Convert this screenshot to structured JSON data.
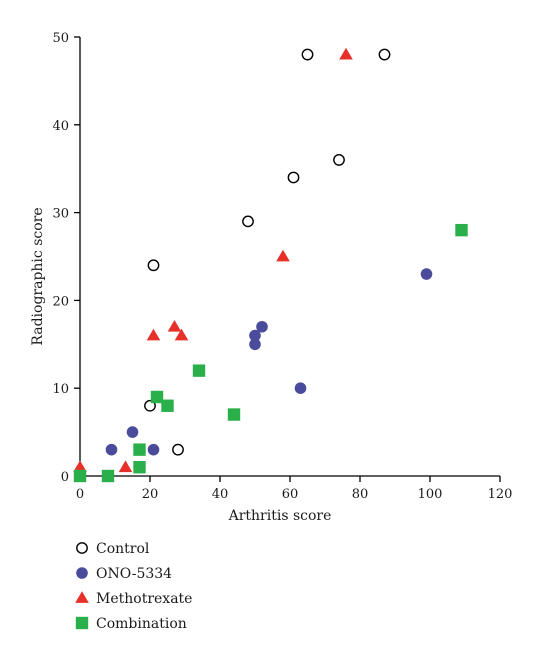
{
  "chart_data": {
    "type": "scatter",
    "xlabel": "Arthritis score",
    "ylabel": "Radiographic score",
    "xlim": [
      0,
      120
    ],
    "ylim": [
      0,
      50
    ],
    "xticks": [
      "0",
      "20",
      "40",
      "60",
      "80",
      "100",
      "120"
    ],
    "yticks": [
      "0",
      "10",
      "20",
      "30",
      "40",
      "50"
    ],
    "grid": false,
    "legend_position": "bottom-left",
    "series": [
      {
        "name": "Control",
        "marker": "circle-open",
        "color": "#000000",
        "points": [
          {
            "x": 65,
            "y": 48
          },
          {
            "x": 87,
            "y": 48
          },
          {
            "x": 74,
            "y": 36
          },
          {
            "x": 61,
            "y": 34
          },
          {
            "x": 48,
            "y": 29
          },
          {
            "x": 21,
            "y": 24
          },
          {
            "x": 20,
            "y": 8
          },
          {
            "x": 28,
            "y": 3
          }
        ]
      },
      {
        "name": "ONO-5334",
        "marker": "circle-filled",
        "color": "#4b4b9c",
        "points": [
          {
            "x": 99,
            "y": 23
          },
          {
            "x": 52,
            "y": 17
          },
          {
            "x": 50,
            "y": 16
          },
          {
            "x": 50,
            "y": 15
          },
          {
            "x": 63,
            "y": 10
          },
          {
            "x": 15,
            "y": 5
          },
          {
            "x": 9,
            "y": 3
          },
          {
            "x": 21,
            "y": 3
          }
        ]
      },
      {
        "name": "Methotrexate",
        "marker": "triangle",
        "color": "#e8302a",
        "points": [
          {
            "x": 76,
            "y": 48
          },
          {
            "x": 58,
            "y": 25
          },
          {
            "x": 27,
            "y": 17
          },
          {
            "x": 21,
            "y": 16
          },
          {
            "x": 29,
            "y": 16
          },
          {
            "x": 0,
            "y": 1
          },
          {
            "x": 13,
            "y": 1
          }
        ]
      },
      {
        "name": "Combination",
        "marker": "square",
        "color": "#2ab04a",
        "points": [
          {
            "x": 109,
            "y": 28
          },
          {
            "x": 34,
            "y": 12
          },
          {
            "x": 22,
            "y": 9
          },
          {
            "x": 25,
            "y": 8
          },
          {
            "x": 44,
            "y": 7
          },
          {
            "x": 17,
            "y": 3
          },
          {
            "x": 17,
            "y": 1
          },
          {
            "x": 0,
            "y": 0
          },
          {
            "x": 8,
            "y": 0
          }
        ]
      }
    ]
  }
}
